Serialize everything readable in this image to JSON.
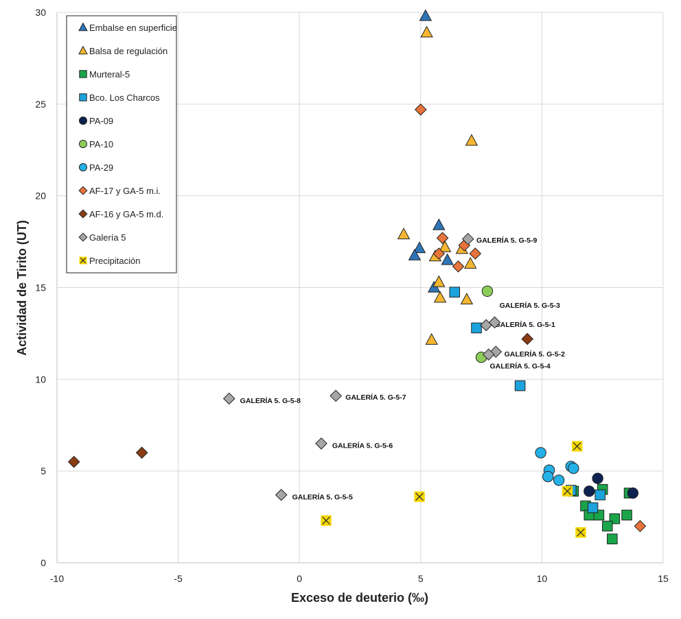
{
  "chart_data": {
    "type": "scatter",
    "title": "",
    "xlabel": "Exceso de deuterio (‰)",
    "ylabel": "Actividad de Tirito (UT)",
    "xlim": [
      -10,
      15
    ],
    "ylim": [
      0,
      30
    ],
    "xticks": [
      -10,
      -5,
      0,
      5,
      10,
      15
    ],
    "yticks": [
      0,
      5,
      10,
      15,
      20,
      25,
      30
    ],
    "grid": true,
    "legend_position": "top-left",
    "series": [
      {
        "name": "Embalse en superficie",
        "marker": "triangle",
        "color": "#2e75b6",
        "points": [
          [
            5.2,
            29.8
          ],
          [
            5.75,
            18.4
          ],
          [
            4.95,
            17.15
          ],
          [
            4.75,
            16.75
          ],
          [
            6.1,
            16.5
          ],
          [
            5.55,
            15.0
          ]
        ]
      },
      {
        "name": "Balsa de regulación",
        "marker": "triangle",
        "color": "#f5b731",
        "points": [
          [
            5.25,
            28.9
          ],
          [
            7.1,
            23.0
          ],
          [
            4.3,
            17.9
          ],
          [
            6.0,
            17.2
          ],
          [
            6.7,
            17.1
          ],
          [
            5.6,
            16.7
          ],
          [
            7.05,
            16.3
          ],
          [
            5.75,
            15.3
          ],
          [
            5.8,
            14.45
          ],
          [
            6.9,
            14.35
          ],
          [
            5.45,
            12.15
          ]
        ]
      },
      {
        "name": "Murteral-5",
        "marker": "square",
        "color": "#1aa54a",
        "points": [
          [
            11.3,
            3.9
          ],
          [
            12.5,
            4.0
          ],
          [
            13.6,
            3.8
          ],
          [
            11.8,
            3.1
          ],
          [
            11.95,
            2.6
          ],
          [
            12.35,
            2.6
          ],
          [
            13.5,
            2.6
          ],
          [
            13.0,
            2.4
          ],
          [
            12.7,
            2.0
          ],
          [
            12.9,
            1.3
          ]
        ]
      },
      {
        "name": "Bco. Los Charcos",
        "marker": "square",
        "color": "#1ca3dc",
        "points": [
          [
            6.4,
            14.75
          ],
          [
            7.3,
            12.8
          ],
          [
            9.1,
            9.65
          ],
          [
            12.1,
            3.0
          ],
          [
            12.4,
            3.7
          ],
          [
            11.2,
            3.95
          ]
        ]
      },
      {
        "name": "PA-09",
        "marker": "circle",
        "color": "#0e2250",
        "points": [
          [
            12.3,
            4.6
          ],
          [
            11.95,
            3.9
          ],
          [
            13.75,
            3.8
          ]
        ]
      },
      {
        "name": "PA-10",
        "marker": "circle",
        "color": "#8ccc59",
        "points": [
          [
            7.75,
            14.8
          ],
          [
            7.5,
            11.2
          ]
        ]
      },
      {
        "name": "PA-29",
        "marker": "circle",
        "color": "#24b1e8",
        "points": [
          [
            9.95,
            6.0
          ],
          [
            10.3,
            5.05
          ],
          [
            11.2,
            5.25
          ],
          [
            11.3,
            5.15
          ],
          [
            10.25,
            4.7
          ],
          [
            10.7,
            4.5
          ]
        ]
      },
      {
        "name": "AF-17 y GA-5 m.i.",
        "marker": "diamond",
        "color": "#e8743b",
        "points": [
          [
            5.0,
            24.7
          ],
          [
            5.9,
            17.7
          ],
          [
            6.8,
            17.3
          ],
          [
            5.75,
            16.85
          ],
          [
            7.25,
            16.85
          ],
          [
            6.55,
            16.15
          ],
          [
            14.05,
            2.0
          ]
        ]
      },
      {
        "name": "AF-16 y GA-5 m.d.",
        "marker": "diamond",
        "color": "#8a3d12",
        "points": [
          [
            -9.3,
            5.5
          ],
          [
            -6.5,
            6.0
          ],
          [
            9.4,
            12.2
          ]
        ]
      },
      {
        "name": "Galería 5",
        "marker": "diamond",
        "color": "#a6a6a6",
        "points": [
          [
            6.95,
            17.65
          ],
          [
            8.05,
            13.1
          ],
          [
            7.7,
            12.95
          ],
          [
            8.1,
            11.5
          ],
          [
            7.8,
            11.35
          ],
          [
            -2.9,
            8.95
          ],
          [
            1.5,
            9.1
          ],
          [
            0.9,
            6.5
          ],
          [
            -0.75,
            3.7
          ]
        ]
      },
      {
        "name": "Precipitación",
        "marker": "x",
        "color": "#f5d800",
        "points": [
          [
            11.45,
            6.35
          ],
          [
            11.05,
            3.9
          ],
          [
            11.6,
            1.65
          ],
          [
            4.95,
            3.6
          ],
          [
            1.1,
            2.3
          ]
        ]
      }
    ],
    "annotations": [
      {
        "text": "GALERÍA 5. G-5-9",
        "x": 7.3,
        "y": 17.6
      },
      {
        "text": "GALERÍA 5. G-5-3",
        "x": 8.25,
        "y": 14.05
      },
      {
        "text": "GALERÍA 5. G-5-1",
        "x": 8.05,
        "y": 13.0
      },
      {
        "text": "GALERÍA 5. G-5-2",
        "x": 8.45,
        "y": 11.4
      },
      {
        "text": "GALERÍA 5. G-5-4",
        "x": 7.85,
        "y": 10.75
      },
      {
        "text": "GALERÍA 5. G-5-8",
        "x": -2.45,
        "y": 8.85
      },
      {
        "text": "GALERÍA 5. G-5-7",
        "x": 1.9,
        "y": 9.05
      },
      {
        "text": "GALERÍA 5. G-5-6",
        "x": 1.35,
        "y": 6.4
      },
      {
        "text": "GALERÍA 5. G-5-5",
        "x": -0.3,
        "y": 3.6
      }
    ]
  }
}
